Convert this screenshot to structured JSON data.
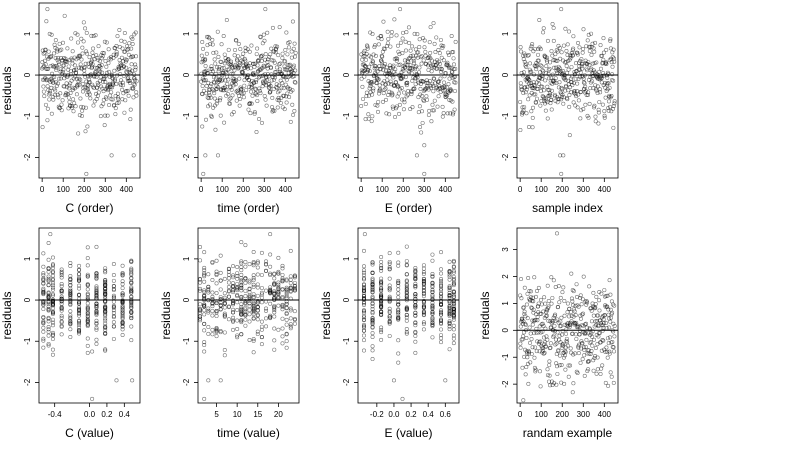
{
  "point_color": "#000000",
  "chart_data": [
    {
      "panel": "c-order",
      "type": "scatter",
      "xlabel": "C (order)",
      "ylabel": "residuals",
      "xlim": [
        -15,
        465
      ],
      "ylim": [
        -2.5,
        1.75
      ],
      "xticks": [
        0,
        100,
        200,
        300,
        400
      ],
      "xtick_labels": [
        "0",
        "100",
        "200",
        "300",
        "400"
      ],
      "yticks": [
        1,
        0,
        -1,
        -2
      ],
      "ytick_labels": [
        "1",
        "0",
        "-1",
        "-2"
      ],
      "hline": 0,
      "n_points": 450,
      "x_kind": "index",
      "highlighted_points": [
        [
          25,
          1.6
        ],
        [
          215,
          -1.25
        ],
        [
          210,
          -2.4
        ],
        [
          330,
          -1.95
        ],
        [
          435,
          -1.95
        ]
      ]
    },
    {
      "panel": "time-order",
      "type": "scatter",
      "xlabel": "time (order)",
      "ylabel": "residuals",
      "xlim": [
        -15,
        465
      ],
      "ylim": [
        -2.5,
        1.75
      ],
      "xticks": [
        0,
        100,
        200,
        300,
        400
      ],
      "xtick_labels": [
        "0",
        "100",
        "200",
        "300",
        "400"
      ],
      "yticks": [
        1,
        0,
        -1,
        -2
      ],
      "ytick_labels": [
        "1",
        "0",
        "-1",
        "-2"
      ],
      "hline": 0,
      "n_points": 450,
      "x_kind": "index",
      "highlighted_points": [
        [
          305,
          1.6
        ],
        [
          5,
          -1.25
        ],
        [
          20,
          -1.95
        ],
        [
          80,
          -1.95
        ],
        [
          10,
          -2.4
        ]
      ]
    },
    {
      "panel": "e-order",
      "type": "scatter",
      "xlabel": "E (order)",
      "ylabel": "residuals",
      "xlim": [
        -15,
        465
      ],
      "ylim": [
        -2.5,
        1.75
      ],
      "xticks": [
        0,
        100,
        200,
        300,
        400
      ],
      "xtick_labels": [
        "0",
        "100",
        "200",
        "300",
        "400"
      ],
      "yticks": [
        1,
        0,
        -1,
        -2
      ],
      "ytick_labels": [
        "1",
        "0",
        "-1",
        "-2"
      ],
      "hline": 0,
      "n_points": 450,
      "x_kind": "index",
      "highlighted_points": [
        [
          185,
          1.6
        ],
        [
          265,
          -1.95
        ],
        [
          300,
          -2.4
        ],
        [
          405,
          -1.95
        ]
      ]
    },
    {
      "panel": "sample-index",
      "type": "scatter",
      "xlabel": "sample index",
      "ylabel": "residuals",
      "xlim": [
        -15,
        465
      ],
      "ylim": [
        -2.5,
        1.75
      ],
      "xticks": [
        0,
        100,
        200,
        300,
        400
      ],
      "xtick_labels": [
        "0",
        "100",
        "200",
        "300",
        "400"
      ],
      "yticks": [
        1,
        0,
        -1,
        -2
      ],
      "ytick_labels": [
        "1",
        "0",
        "-1",
        "-2"
      ],
      "hline": 0,
      "n_points": 450,
      "x_kind": "index",
      "highlighted_points": [
        [
          195,
          1.6
        ],
        [
          190,
          -1.95
        ],
        [
          205,
          -1.95
        ],
        [
          195,
          -2.4
        ]
      ]
    },
    {
      "panel": "c-value",
      "type": "scatter",
      "xlabel": "C (value)",
      "ylabel": "residuals",
      "xlim": [
        -0.58,
        0.58
      ],
      "ylim": [
        -2.5,
        1.75
      ],
      "xticks": [
        -0.4,
        0.0,
        0.2,
        0.4
      ],
      "xtick_labels": [
        "-0.4",
        "0.0",
        "0.2",
        "0.4"
      ],
      "yticks": [
        1,
        0,
        -1,
        -2
      ],
      "ytick_labels": [
        "1",
        "0",
        "-1",
        "-2"
      ],
      "hline": 0,
      "n_points": 450,
      "x_kind": "discrete",
      "x_levels": [
        -0.53,
        -0.47,
        -0.42,
        -0.32,
        -0.22,
        -0.12,
        -0.02,
        0.08,
        0.18,
        0.28,
        0.38,
        0.48
      ],
      "highlighted_points": [
        [
          -0.45,
          1.6
        ],
        [
          0.03,
          -1.25
        ],
        [
          0.03,
          -2.4
        ],
        [
          0.31,
          -1.95
        ],
        [
          0.49,
          -1.95
        ]
      ]
    },
    {
      "panel": "time-value",
      "type": "scatter",
      "xlabel": "time (value)",
      "ylabel": "residuals",
      "xlim": [
        0.5,
        25
      ],
      "ylim": [
        -2.5,
        1.75
      ],
      "xticks": [
        5,
        10,
        15,
        20
      ],
      "xtick_labels": [
        "5",
        "10",
        "15",
        "20"
      ],
      "yticks": [
        1,
        0,
        -1,
        -2
      ],
      "ytick_labels": [
        "1",
        "0",
        "-1",
        "-2"
      ],
      "hline": 0,
      "n_points": 450,
      "x_kind": "discrete",
      "x_levels": [
        1,
        2,
        3,
        4,
        5,
        6,
        7,
        8,
        9,
        10,
        11,
        12,
        13,
        14,
        15,
        16,
        17,
        18,
        19,
        20,
        21,
        22,
        23,
        24
      ],
      "highlighted_points": [
        [
          18,
          1.6
        ],
        [
          2,
          -1.25
        ],
        [
          3,
          -1.95
        ],
        [
          6,
          -1.95
        ],
        [
          2,
          -2.4
        ]
      ]
    },
    {
      "panel": "e-value",
      "type": "scatter",
      "xlabel": "E (value)",
      "ylabel": "residuals",
      "xlim": [
        -0.42,
        0.76
      ],
      "ylim": [
        -2.5,
        1.75
      ],
      "xticks": [
        -0.2,
        0.0,
        0.2,
        0.4,
        0.6
      ],
      "xtick_labels": [
        "-0.2",
        "0.0",
        "0.2",
        "0.4",
        "0.6"
      ],
      "yticks": [
        1,
        0,
        -1,
        -2
      ],
      "ytick_labels": [
        "1",
        "0",
        "-1",
        "-2"
      ],
      "hline": 0,
      "n_points": 450,
      "x_kind": "discrete",
      "x_levels": [
        -0.35,
        -0.25,
        -0.15,
        -0.05,
        0.05,
        0.15,
        0.25,
        0.35,
        0.45,
        0.55,
        0.65,
        0.7
      ],
      "highlighted_points": [
        [
          -0.34,
          1.6
        ],
        [
          0.0,
          -1.95
        ],
        [
          0.1,
          -2.4
        ],
        [
          0.6,
          -1.95
        ]
      ]
    },
    {
      "panel": "random-example",
      "type": "scatter",
      "xlabel": "randam example",
      "ylabel": "residuals",
      "xlim": [
        -15,
        465
      ],
      "ylim": [
        -2.7,
        3.8
      ],
      "xticks": [
        0,
        100,
        200,
        300,
        400
      ],
      "xtick_labels": [
        "0",
        "100",
        "200",
        "300",
        "400"
      ],
      "yticks": [
        3,
        2,
        1,
        0,
        -1,
        -2
      ],
      "ytick_labels": [
        "3",
        "2",
        "1",
        "0",
        "-1",
        "-2"
      ],
      "hline": 0,
      "n_points": 450,
      "x_kind": "index",
      "highlighted_points": [
        [
          175,
          3.6
        ],
        [
          15,
          -2.6
        ],
        [
          250,
          -2.3
        ]
      ]
    }
  ]
}
